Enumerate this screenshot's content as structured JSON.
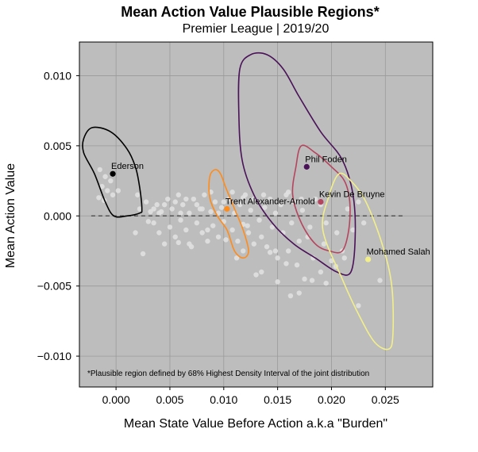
{
  "chart_data": {
    "type": "scatter",
    "title": "Mean Action Value Plausible Regions*",
    "subtitle": "Premier League | 2019/20",
    "xlabel": "Mean State Value Before Action a.k.a \"Burden\"",
    "ylabel": "Mean Action Value",
    "xlim": [
      -0.0034,
      0.0294
    ],
    "ylim": [
      -0.0122,
      0.0124
    ],
    "x_ticks": [
      "0.000",
      "0.005",
      "0.010",
      "0.015",
      "0.020",
      "0.025"
    ],
    "y_ticks": [
      "0.010",
      "0.005",
      "0.000",
      "−0.005",
      "−0.010"
    ],
    "x_tick_values": [
      0.0,
      0.005,
      0.01,
      0.015,
      0.02,
      0.025
    ],
    "y_tick_values": [
      0.01,
      0.005,
      0.0,
      -0.005,
      -0.01
    ],
    "grid": true,
    "background_color": "#bdbdbd",
    "footnote": "*Plausible region defined by 68% Highest Density Interval of the joint distribution",
    "reference_line": {
      "y": 0.0,
      "x_range": [
        -0.0023,
        0.0268
      ],
      "style": "dashed",
      "color": "#555555"
    },
    "highlighted": [
      {
        "name": "Ederson",
        "x": -0.0003,
        "y": 0.003,
        "color": "#000000",
        "region": [
          [
            -0.0022,
            0.0063
          ],
          [
            -0.0005,
            0.006
          ],
          [
            0.001,
            0.0048
          ],
          [
            0.0018,
            0.0035
          ],
          [
            0.0022,
            0.002
          ],
          [
            0.0024,
            0.0005
          ],
          [
            0.0022,
            0.0002
          ],
          [
            0.001,
            0.0
          ],
          [
            -0.0002,
            0.0
          ],
          [
            -0.001,
            0.001
          ],
          [
            -0.002,
            0.003
          ],
          [
            -0.003,
            0.0045
          ],
          [
            -0.003,
            0.0055
          ]
        ]
      },
      {
        "name": "Trent Alexander-Arnold",
        "x": 0.0103,
        "y": 0.0005,
        "color": "#ff8c1a",
        "region": [
          [
            0.0092,
            0.0033
          ],
          [
            0.0097,
            0.003
          ],
          [
            0.0102,
            0.002
          ],
          [
            0.011,
            0.0005
          ],
          [
            0.0118,
            -0.001
          ],
          [
            0.0123,
            -0.0025
          ],
          [
            0.0118,
            -0.003
          ],
          [
            0.011,
            -0.0025
          ],
          [
            0.0103,
            -0.001
          ],
          [
            0.0094,
            0.0
          ],
          [
            0.0087,
            0.0013
          ],
          [
            0.0087,
            0.0028
          ]
        ]
      },
      {
        "name": "Phil Foden",
        "x": 0.0177,
        "y": 0.0035,
        "color": "#4a1258",
        "region": [
          [
            0.0115,
            0.0105
          ],
          [
            0.0125,
            0.0115
          ],
          [
            0.014,
            0.0115
          ],
          [
            0.0155,
            0.0105
          ],
          [
            0.017,
            0.0085
          ],
          [
            0.019,
            0.006
          ],
          [
            0.021,
            0.004
          ],
          [
            0.022,
            0.0015
          ],
          [
            0.0222,
            -0.0015
          ],
          [
            0.0218,
            -0.004
          ],
          [
            0.0205,
            -0.004
          ],
          [
            0.0185,
            -0.003
          ],
          [
            0.0165,
            -0.002
          ],
          [
            0.0145,
            -0.0005
          ],
          [
            0.0128,
            0.0015
          ],
          [
            0.0117,
            0.004
          ],
          [
            0.0114,
            0.0073
          ]
        ]
      },
      {
        "name": "Kevin De Bruyne",
        "x": 0.019,
        "y": 0.001,
        "color": "#b5455e",
        "region": [
          [
            0.0172,
            0.005
          ],
          [
            0.0185,
            0.0045
          ],
          [
            0.02,
            0.0035
          ],
          [
            0.0212,
            0.0025
          ],
          [
            0.0217,
            0.001
          ],
          [
            0.0216,
            -0.001
          ],
          [
            0.021,
            -0.0025
          ],
          [
            0.0198,
            -0.0025
          ],
          [
            0.0185,
            -0.002
          ],
          [
            0.0172,
            -0.0005
          ],
          [
            0.0164,
            0.0015
          ],
          [
            0.0167,
            0.0035
          ]
        ]
      },
      {
        "name": "Mohamed Salah",
        "x": 0.0234,
        "y": -0.0031,
        "color": "#f2ef8a",
        "region": [
          [
            0.0207,
            0.003
          ],
          [
            0.0218,
            0.0025
          ],
          [
            0.0232,
            0.001
          ],
          [
            0.0247,
            -0.002
          ],
          [
            0.0256,
            -0.005
          ],
          [
            0.0257,
            -0.0085
          ],
          [
            0.0253,
            -0.0095
          ],
          [
            0.024,
            -0.009
          ],
          [
            0.0225,
            -0.007
          ],
          [
            0.021,
            -0.0045
          ],
          [
            0.0192,
            -0.001
          ],
          [
            0.0198,
            0.0015
          ]
        ]
      }
    ],
    "background_points": {
      "color": "#e0e0e0",
      "points": [
        [
          -0.0015,
          0.0033
        ],
        [
          -0.001,
          0.0028
        ],
        [
          -0.0005,
          0.0025
        ],
        [
          -0.0013,
          0.0021
        ],
        [
          -0.0008,
          0.0018
        ],
        [
          -0.0003,
          0.0015
        ],
        [
          -0.0016,
          0.0013
        ],
        [
          0.0002,
          0.0018
        ],
        [
          -0.0011,
          0.0011
        ],
        [
          0.002,
          0.0015
        ],
        [
          0.0022,
          0.0005
        ],
        [
          0.0028,
          0.001
        ],
        [
          0.0032,
          0.0003
        ],
        [
          0.0035,
          -0.0005
        ],
        [
          0.0038,
          0.0008
        ],
        [
          0.004,
          -0.0012
        ],
        [
          0.0042,
          0.0003
        ],
        [
          0.0045,
          -0.002
        ],
        [
          0.0048,
          0.0012
        ],
        [
          0.005,
          -0.0008
        ],
        [
          0.0052,
          0.0005
        ],
        [
          0.0055,
          -0.0015
        ],
        [
          0.0058,
          0.0015
        ],
        [
          0.006,
          -0.0003
        ],
        [
          0.0062,
          0.0008
        ],
        [
          0.0065,
          -0.001
        ],
        [
          0.0068,
          0.0002
        ],
        [
          0.007,
          -0.0022
        ],
        [
          0.0072,
          0.0012
        ],
        [
          0.0075,
          -0.0005
        ],
        [
          0.0078,
          0.0005
        ],
        [
          0.008,
          -0.0012
        ],
        [
          0.0082,
          0.0015
        ],
        [
          0.0085,
          -0.0018
        ],
        [
          0.0088,
          0.0003
        ],
        [
          0.009,
          -0.0007
        ],
        [
          0.0092,
          0.001
        ],
        [
          0.0095,
          -0.0015
        ],
        [
          0.0098,
          0.0006
        ],
        [
          0.01,
          -0.0004
        ],
        [
          0.0105,
          0.0012
        ],
        [
          0.0108,
          -0.001
        ],
        [
          0.011,
          0.0002
        ],
        [
          0.0113,
          -0.0018
        ],
        [
          0.0115,
          0.0008
        ],
        [
          0.0118,
          -0.0006
        ],
        [
          0.012,
          0.0015
        ],
        [
          0.0123,
          -0.0012
        ],
        [
          0.0125,
          0.0004
        ],
        [
          0.0128,
          -0.002
        ],
        [
          0.013,
          0.001
        ],
        [
          0.0133,
          -0.0003
        ],
        [
          0.0135,
          -0.0015
        ],
        [
          0.0138,
          0.0006
        ],
        [
          0.014,
          -0.0022
        ],
        [
          0.0143,
          0.0012
        ],
        [
          0.0145,
          -0.0008
        ],
        [
          0.0148,
          0.0002
        ],
        [
          0.015,
          -0.003
        ],
        [
          0.0153,
          0.0008
        ],
        [
          0.0155,
          -0.0012
        ],
        [
          0.0158,
          0.0015
        ],
        [
          0.016,
          -0.0025
        ],
        [
          0.0163,
          -0.0005
        ],
        [
          0.0165,
          0.001
        ],
        [
          0.0168,
          -0.0035
        ],
        [
          0.017,
          -0.0018
        ],
        [
          0.0173,
          0.0004
        ],
        [
          0.0175,
          -0.0045
        ],
        [
          0.0178,
          -0.0015
        ],
        [
          0.018,
          -0.0008
        ],
        [
          0.0183,
          -0.003
        ],
        [
          0.0185,
          0.0012
        ],
        [
          0.019,
          -0.004
        ],
        [
          0.0193,
          -0.002
        ],
        [
          0.0195,
          -0.0005
        ],
        [
          0.02,
          -0.0032
        ],
        [
          0.0205,
          -0.0012
        ],
        [
          0.021,
          -0.0025
        ],
        [
          0.0215,
          0.0005
        ],
        [
          0.022,
          -0.001
        ],
        [
          0.0225,
          0.001
        ],
        [
          0.023,
          -0.0005
        ],
        [
          0.0245,
          -0.0046
        ],
        [
          0.0225,
          -0.0064
        ],
        [
          0.017,
          -0.0055
        ],
        [
          0.0162,
          -0.0057
        ],
        [
          0.0135,
          -0.004
        ],
        [
          0.013,
          -0.0042
        ],
        [
          0.015,
          -0.0047
        ],
        [
          0.0085,
          -0.001
        ],
        [
          0.008,
          0.0005
        ],
        [
          0.0035,
          0.0005
        ],
        [
          0.0025,
          -0.0027
        ],
        [
          0.004,
          0.0002
        ],
        [
          0.0102,
          -0.0017
        ],
        [
          0.0108,
          0.0017
        ],
        [
          0.0118,
          -0.0025
        ],
        [
          0.0148,
          -0.0025
        ],
        [
          0.016,
          0.0017
        ],
        [
          0.0172,
          0.0012
        ],
        [
          0.0182,
          -0.0046
        ],
        [
          0.0204,
          -0.0036
        ],
        [
          0.0212,
          -0.003
        ],
        [
          0.0195,
          -0.0048
        ],
        [
          0.0158,
          -0.0034
        ],
        [
          0.0143,
          -0.0026
        ],
        [
          0.0122,
          -0.0007
        ],
        [
          0.0128,
          0.0012
        ],
        [
          0.0137,
          0.0015
        ],
        [
          0.0088,
          0.0017
        ],
        [
          0.0065,
          0.0012
        ],
        [
          0.0058,
          -0.0019
        ],
        [
          0.0045,
          0.0008
        ],
        [
          0.003,
          -0.0004
        ],
        [
          0.0018,
          -0.0012
        ],
        [
          0.0068,
          -0.002
        ],
        [
          0.0055,
          0.001
        ],
        [
          0.0112,
          -0.003
        ],
        [
          0.0118,
          0.0013
        ],
        [
          0.006,
          0.0002
        ],
        [
          0.0095,
          0.0002
        ],
        [
          0.019,
          0.0008
        ],
        [
          0.0075,
          0.0008
        ],
        [
          0.01,
          0.001
        ]
      ]
    }
  }
}
